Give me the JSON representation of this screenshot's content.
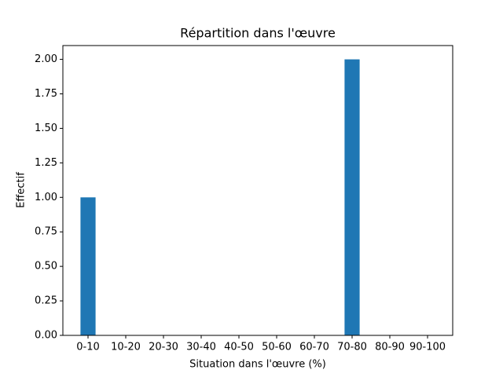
{
  "chart_data": {
    "type": "bar",
    "title": "Répartition dans l'œuvre",
    "x_label": "Situation dans l'œuvre (%)",
    "y_label": "Effectif",
    "categories": [
      "0-10",
      "10-20",
      "20-30",
      "30-40",
      "40-50",
      "50-60",
      "60-70",
      "70-80",
      "80-90",
      "90-100"
    ],
    "values": [
      1,
      0,
      0,
      0,
      0,
      0,
      0,
      2,
      0,
      0
    ],
    "color": "#1f77b4",
    "ylim": [
      0,
      2.1
    ],
    "yticks": [
      {
        "value": 0,
        "label": "0.00"
      },
      {
        "value": 0.25,
        "label": "0.25"
      },
      {
        "value": 0.5,
        "label": "0.50"
      },
      {
        "value": 0.75,
        "label": "0.75"
      },
      {
        "value": 1,
        "label": "1.00"
      },
      {
        "value": 1.25,
        "label": "1.25"
      },
      {
        "value": 1.5,
        "label": "1.50"
      },
      {
        "value": 1.75,
        "label": "1.75"
      },
      {
        "value": 2,
        "label": "2.00"
      }
    ],
    "grid": false
  }
}
